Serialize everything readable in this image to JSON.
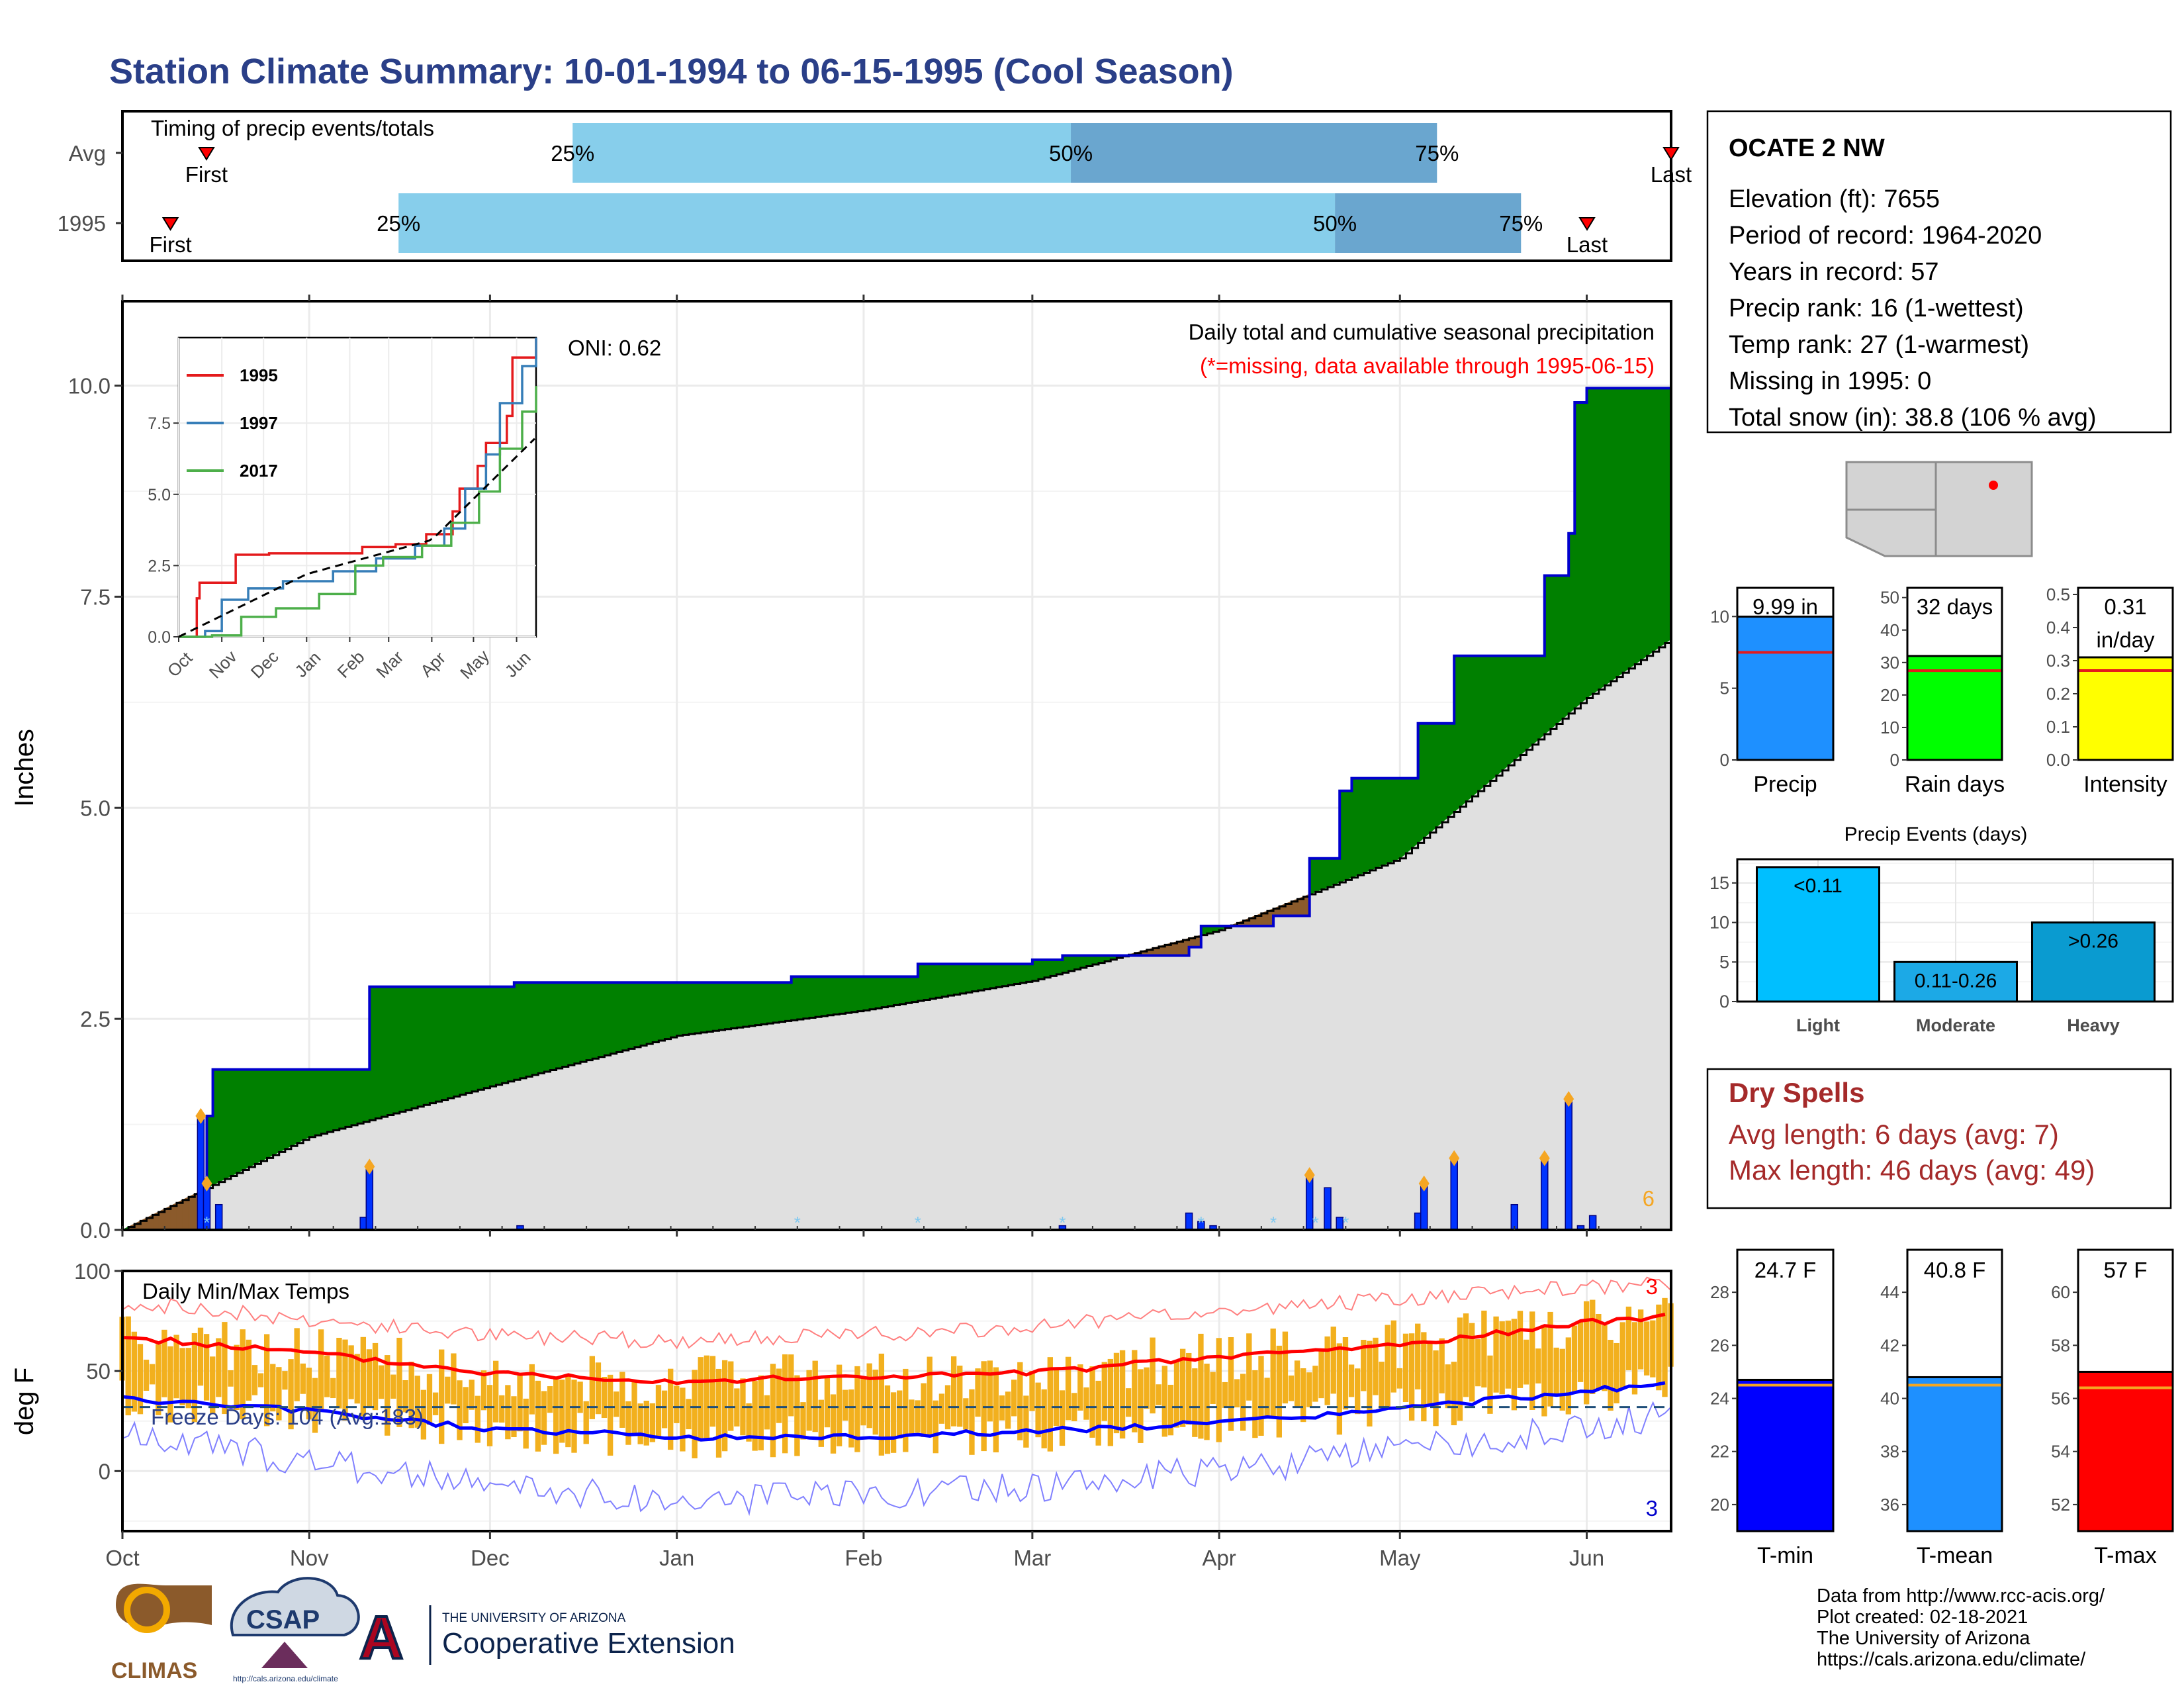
{
  "title": "Station Climate Summary: 10-01-1994 to 06-15-1995 (Cool Season)",
  "colors": {
    "title": "#2a3f88",
    "precip_fill_above": "#008000",
    "precip_fill_below": "#8b5a2b",
    "normal_area": "#e0e0e0",
    "daily_bars": "#0033ff",
    "bar_light_blue": "#87ceeb",
    "bar_mid_blue": "#6aa6cf",
    "tmax_line": "#ff0000",
    "tmin_line": "#0000ff",
    "temp_bars": "#f2b01e",
    "dry_spell_text": "#a52a2a"
  },
  "timing": {
    "title": "Timing of precip events/totals",
    "rows": [
      {
        "label": "Avg",
        "first_label": "First",
        "last_label": "Last",
        "p25": "25%",
        "p50": "50%",
        "p75": "75%",
        "first_date": "1994-10-14",
        "d25": "1994-12-14",
        "d50": "1995-03-07",
        "d75": "1995-05-07",
        "last_date": "1995-06-15"
      },
      {
        "label": "1995",
        "first_label": "First",
        "last_label": "Last",
        "p25": "25%",
        "p50": "50%",
        "p75": "75%",
        "first_date": "1994-10-08",
        "d25": "1994-11-15",
        "d50": "1995-04-20",
        "d75": "1995-05-21",
        "last_date": "1995-06-01"
      }
    ]
  },
  "main_plot": {
    "ylabel": "Inches",
    "title": "Daily total and cumulative seasonal precipitation",
    "subtitle": "(*=missing, data available through 1995-06-15)",
    "oni": "ONI: 0.62",
    "corner_count": "6",
    "y_ticks": [
      "0.0",
      "2.5",
      "5.0",
      "7.5",
      "10.0"
    ],
    "x_ticks": [
      "Oct",
      "Nov",
      "Dec",
      "Jan",
      "Feb",
      "Mar",
      "Apr",
      "May",
      "Jun"
    ]
  },
  "inset": {
    "y_ticks": [
      "0.0",
      "2.5",
      "5.0",
      "7.5"
    ],
    "x_ticks": [
      "Oct",
      "Nov",
      "Dec",
      "Jan",
      "Feb",
      "Mar",
      "Apr",
      "May",
      "Jun"
    ],
    "legend": [
      {
        "name": "1995",
        "color": "#e41a1c"
      },
      {
        "name": "1997",
        "color": "#377eb8"
      },
      {
        "name": "2017",
        "color": "#4daf4a"
      }
    ]
  },
  "temp_plot": {
    "ylabel": "deg F",
    "title": "Daily Min/Max Temps",
    "freeze_text": "Freeze Days: 104 (Avg:183)",
    "top_count": "3",
    "bottom_count": "3",
    "y_ticks": [
      "0",
      "50",
      "100"
    ],
    "x_ticks": [
      "Oct",
      "Nov",
      "Dec",
      "Jan",
      "Feb",
      "Mar",
      "Apr",
      "May",
      "Jun"
    ]
  },
  "station": {
    "name": "OCATE 2 NW",
    "lines": [
      "Elevation (ft): 7655",
      "Period of record: 1964-2020",
      "Years in record: 57",
      "Precip rank: 16 (1-wettest)",
      "Temp rank: 27 (1-warmest)",
      "Missing in 1995: 0",
      "Total snow (in): 38.8 (106 % avg)"
    ]
  },
  "summary_bars": [
    {
      "name": "Precip",
      "value": 9.99,
      "avg": 7.5,
      "label": "9.99 in",
      "label2": "",
      "ymax": 12,
      "ticks": [
        "0",
        "5",
        "10"
      ],
      "tickvals": [
        0,
        5,
        10
      ],
      "color": "#1e90ff"
    },
    {
      "name": "Rain days",
      "value": 32,
      "avg": 27.5,
      "label": "32 days",
      "label2": "",
      "ymax": 53,
      "ticks": [
        "0",
        "10",
        "20",
        "30",
        "40",
        "50"
      ],
      "tickvals": [
        0,
        10,
        20,
        30,
        40,
        50
      ],
      "color": "#00ff00"
    },
    {
      "name": "Intensity",
      "value": 0.31,
      "avg": 0.27,
      "label": "0.31",
      "label2": "in/day",
      "ymax": 0.52,
      "ticks": [
        "0.0",
        "0.1",
        "0.2",
        "0.3",
        "0.4",
        "0.5"
      ],
      "tickvals": [
        0,
        0.1,
        0.2,
        0.3,
        0.4,
        0.5
      ],
      "color": "#ffff00"
    }
  ],
  "precip_events": {
    "title": "Precip Events (days)",
    "ticks": [
      "0",
      "5",
      "10",
      "15"
    ],
    "bars": [
      {
        "name": "Light",
        "label": "<0.11",
        "value": 17,
        "color": "#00bfff"
      },
      {
        "name": "Moderate",
        "label": "0.11-0.26",
        "value": 5,
        "color": "#1ca9e6"
      },
      {
        "name": "Heavy",
        "label": ">0.26",
        "value": 10,
        "color": "#0a9bd0"
      }
    ]
  },
  "dry_spells": {
    "title": "Dry Spells",
    "avg_length": "Avg length: 6 days (avg: 7)",
    "max_length": "Max length: 46 days (avg: 49)"
  },
  "temp_bars": [
    {
      "name": "T-min",
      "value": 24.7,
      "avg": 24.5,
      "label": "24.7 F",
      "ymin": 19,
      "ymax": 29.6,
      "ticks": [
        "20",
        "22",
        "24",
        "26",
        "28"
      ],
      "tickvals": [
        20,
        22,
        24,
        26,
        28
      ],
      "color": "#0000ff"
    },
    {
      "name": "T-mean",
      "value": 40.8,
      "avg": 40.5,
      "label": "40.8 F",
      "ymin": 35,
      "ymax": 45.6,
      "ticks": [
        "36",
        "38",
        "40",
        "42",
        "44"
      ],
      "tickvals": [
        36,
        38,
        40,
        42,
        44
      ],
      "color": "#1e90ff"
    },
    {
      "name": "T-max",
      "value": 57,
      "avg": 56.4,
      "label": "57 F",
      "ymin": 51,
      "ymax": 61.6,
      "ticks": [
        "52",
        "54",
        "56",
        "58",
        "60"
      ],
      "tickvals": [
        52,
        54,
        56,
        58,
        60
      ],
      "color": "#ff0000"
    }
  ],
  "footer": {
    "lines": [
      "Data from http://www.rcc-acis.org/",
      "Plot created: 02-18-2021",
      "The University of Arizona",
      "https://cals.arizona.edu/climate/"
    ],
    "logo_climas": "CLIMAS",
    "logo_csap": "CSAP",
    "logo_csap_url": "http://cals.arizona.edu/climate",
    "ua_small": "THE UNIVERSITY OF ARIZONA",
    "ua_big": "Cooperative Extension",
    "ua_letter": "A"
  },
  "chart_data": [
    {
      "type": "area",
      "title": "Daily total and cumulative seasonal precipitation",
      "ylabel": "Inches",
      "ylim": [
        0,
        11
      ],
      "x_range": [
        "1994-10-01",
        "1995-06-15"
      ],
      "series": [
        {
          "name": "",
          "kind": "cumulative_1995",
          "x": [
            "1994-10-01",
            "1994-10-14",
            "1994-10-15",
            "1994-10-16",
            "1994-11-10",
            "1994-11-11",
            "1994-12-05",
            "1995-01-20",
            "1995-02-10",
            "1995-03-01",
            "1995-03-06",
            "1995-03-27",
            "1995-03-29",
            "1995-04-10",
            "1995-04-16",
            "1995-04-21",
            "1995-04-23",
            "1995-05-04",
            "1995-05-10",
            "1995-05-25",
            "1995-05-29",
            "1995-05-30",
            "1995-06-01",
            "1995-06-15"
          ],
          "values": [
            0.0,
            0.0,
            1.35,
            1.9,
            1.9,
            2.88,
            2.93,
            3.0,
            3.15,
            3.2,
            3.25,
            3.35,
            3.6,
            3.72,
            4.4,
            5.2,
            5.35,
            6.0,
            6.8,
            7.75,
            8.25,
            9.8,
            9.97,
            9.99
          ]
        },
        {
          "name": "",
          "kind": "cumulative_normal",
          "x": [
            "1994-10-01",
            "1994-11-01",
            "1994-12-01",
            "1995-01-01",
            "1995-02-01",
            "1995-03-01",
            "1995-04-01",
            "1995-05-01",
            "1995-06-01",
            "1995-06-15"
          ],
          "values": [
            0.0,
            1.1,
            1.7,
            2.3,
            2.6,
            2.95,
            3.55,
            4.4,
            6.3,
            7.0
          ]
        }
      ],
      "daily_events": {
        "dates": [
          "1994-10-14",
          "1994-10-15",
          "1994-10-17",
          "1994-11-10",
          "1994-11-11",
          "1994-12-06",
          "1995-03-06",
          "1995-03-27",
          "1995-03-29",
          "1995-03-31",
          "1995-04-16",
          "1995-04-19",
          "1995-04-21",
          "1995-05-04",
          "1995-05-05",
          "1995-05-10",
          "1995-05-20",
          "1995-05-25",
          "1995-05-29",
          "1995-05-31",
          "1995-06-02"
        ],
        "values": [
          1.35,
          0.55,
          0.3,
          0.15,
          0.75,
          0.05,
          0.05,
          0.2,
          0.1,
          0.05,
          0.65,
          0.5,
          0.15,
          0.2,
          0.55,
          0.85,
          0.3,
          0.85,
          1.55,
          0.05,
          0.17
        ]
      },
      "inset": {
        "ylim": [
          0,
          10.5
        ],
        "series": [
          {
            "name": "1995",
            "x": [
              "1994-10-01",
              "1994-10-14",
              "1994-10-16",
              "1994-11-10",
              "1994-11-11",
              "1994-12-05",
              "1995-02-10",
              "1995-03-06",
              "1995-03-28",
              "1995-04-16",
              "1995-04-21",
              "1995-05-04",
              "1995-05-10",
              "1995-05-25",
              "1995-05-29",
              "1995-06-15"
            ],
            "values": [
              0.0,
              1.35,
              1.9,
              1.9,
              2.88,
              2.93,
              3.15,
              3.25,
              3.6,
              4.4,
              5.2,
              6.0,
              6.8,
              7.75,
              9.8,
              10.5
            ]
          },
          {
            "name": "1997",
            "x": [
              "1994-10-01",
              "1994-10-20",
              "1994-11-01",
              "1994-11-20",
              "1994-12-15",
              "1995-01-20",
              "1995-02-20",
              "1995-03-20",
              "1995-04-10",
              "1995-04-25",
              "1995-05-10",
              "1995-05-20",
              "1995-06-05",
              "1995-06-15"
            ],
            "values": [
              0.0,
              0.2,
              1.3,
              1.7,
              1.95,
              2.3,
              2.75,
              3.2,
              3.8,
              5.2,
              6.4,
              8.2,
              9.5,
              10.5
            ]
          },
          {
            "name": "2017",
            "x": [
              "1994-10-01",
              "1994-10-25",
              "1994-11-15",
              "1994-12-10",
              "1995-01-10",
              "1995-02-05",
              "1995-02-25",
              "1995-03-25",
              "1995-04-15",
              "1995-05-05",
              "1995-05-20",
              "1995-06-05",
              "1995-06-15"
            ],
            "values": [
              0.0,
              0.05,
              0.7,
              1.0,
              1.5,
              2.5,
              2.8,
              3.2,
              4.0,
              5.1,
              6.6,
              7.9,
              8.8
            ]
          },
          {
            "name": "",
            "kind": "average_dashed",
            "x": [
              "1994-10-01",
              "1995-01-01",
              "1995-04-01",
              "1995-06-15"
            ],
            "values": [
              0.0,
              2.2,
              3.4,
              7.0
            ]
          }
        ]
      }
    },
    {
      "type": "line",
      "title": "Daily Min/Max Temps",
      "ylabel": "deg F",
      "ylim": [
        -30,
        100
      ],
      "freeze_line": 32,
      "series": [
        {
          "name": "",
          "kind": "avg_tmax",
          "x": [
            "1994-10-01",
            "1994-11-01",
            "1994-12-01",
            "1995-01-01",
            "1995-02-01",
            "1995-03-01",
            "1995-04-01",
            "1995-05-01",
            "1995-06-01",
            "1995-06-15"
          ],
          "values": [
            67,
            59,
            49,
            45,
            47,
            49,
            57,
            63,
            74,
            78
          ]
        },
        {
          "name": "",
          "kind": "avg_tmin",
          "x": [
            "1994-10-01",
            "1994-11-01",
            "1994-12-01",
            "1995-01-01",
            "1995-02-01",
            "1995-03-01",
            "1995-04-01",
            "1995-05-01",
            "1995-06-01",
            "1995-06-15"
          ],
          "values": [
            36,
            30,
            21,
            17,
            17,
            20,
            24,
            31,
            40,
            44
          ]
        },
        {
          "name": "",
          "kind": "record_high",
          "x": [
            "1994-10-01",
            "1994-11-01",
            "1994-12-01",
            "1995-01-01",
            "1995-02-01",
            "1995-03-01",
            "1995-04-01",
            "1995-05-01",
            "1995-06-01",
            "1995-06-15"
          ],
          "values": [
            84,
            76,
            68,
            65,
            68,
            72,
            80,
            86,
            92,
            94
          ]
        },
        {
          "name": "",
          "kind": "record_low",
          "x": [
            "1994-10-01",
            "1994-11-01",
            "1994-12-01",
            "1995-01-01",
            "1995-02-01",
            "1995-03-01",
            "1995-04-01",
            "1995-05-01",
            "1995-06-01",
            "1995-06-15"
          ],
          "values": [
            18,
            5,
            -7,
            -15,
            -12,
            -8,
            0,
            10,
            22,
            28
          ]
        }
      ]
    },
    {
      "type": "bar",
      "categories": [
        "Precip",
        "Rain days",
        "Intensity"
      ],
      "values": [
        9.99,
        32,
        0.31
      ]
    },
    {
      "type": "bar",
      "title": "Precip Events (days)",
      "categories": [
        "Light",
        "Moderate",
        "Heavy"
      ],
      "values": [
        17,
        5,
        10
      ]
    },
    {
      "type": "bar",
      "categories": [
        "T-min",
        "T-mean",
        "T-max"
      ],
      "values": [
        24.7,
        40.8,
        57
      ]
    }
  ]
}
